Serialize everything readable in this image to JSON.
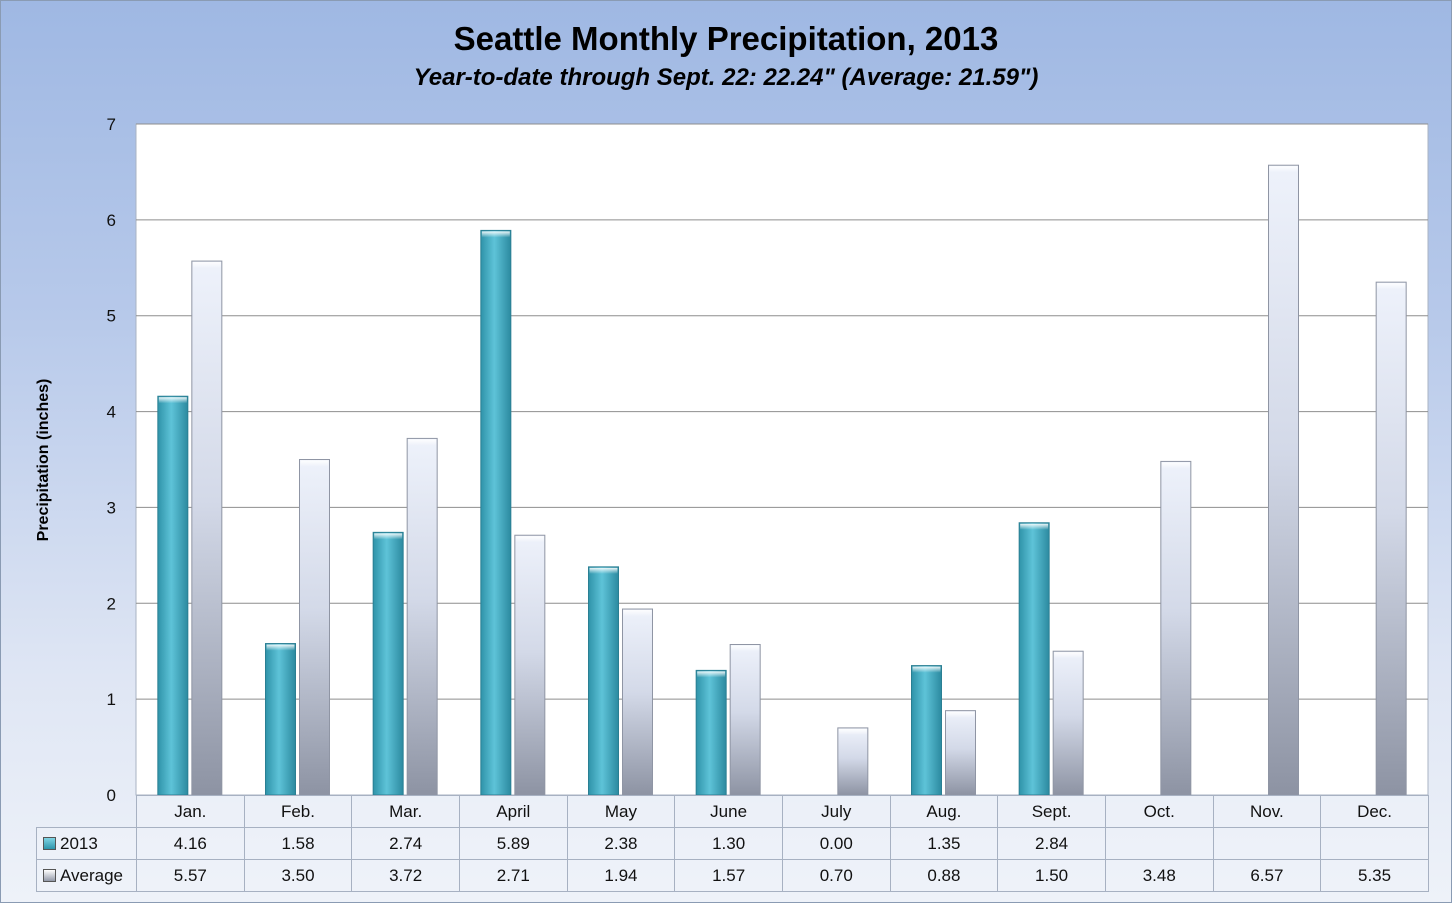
{
  "chart_data": {
    "type": "bar",
    "title": "Seattle Monthly Precipitation, 2013",
    "subtitle": "Year-to-date through Sept. 22: 22.24\" (Average: 21.59\")",
    "ylabel": "Precipitation (inches)",
    "ylim": [
      0,
      7
    ],
    "yticks": [
      "0",
      "1",
      "2",
      "3",
      "4",
      "5",
      "6",
      "7"
    ],
    "grid": true,
    "legend_placement": "data-table",
    "categories": [
      "Jan.",
      "Feb.",
      "Mar.",
      "April",
      "May",
      "June",
      "July",
      "Aug.",
      "Sept.",
      "Oct.",
      "Nov.",
      "Dec."
    ],
    "series": [
      {
        "name": "2013",
        "color": "#3fa9bf",
        "values": [
          4.16,
          1.58,
          2.74,
          5.89,
          2.38,
          1.3,
          0.0,
          1.35,
          2.84,
          null,
          null,
          null
        ],
        "labels": [
          "4.16",
          "1.58",
          "2.74",
          "5.89",
          "2.38",
          "1.30",
          "0.00",
          "1.35",
          "2.84",
          "",
          "",
          ""
        ]
      },
      {
        "name": "Average",
        "color": "#c9d1e3",
        "values": [
          5.57,
          3.5,
          3.72,
          2.71,
          1.94,
          1.57,
          0.7,
          0.88,
          1.5,
          3.48,
          6.57,
          5.35
        ],
        "labels": [
          "5.57",
          "3.50",
          "3.72",
          "2.71",
          "1.94",
          "1.57",
          "0.70",
          "0.88",
          "1.50",
          "3.48",
          "6.57",
          "5.35"
        ]
      }
    ]
  }
}
